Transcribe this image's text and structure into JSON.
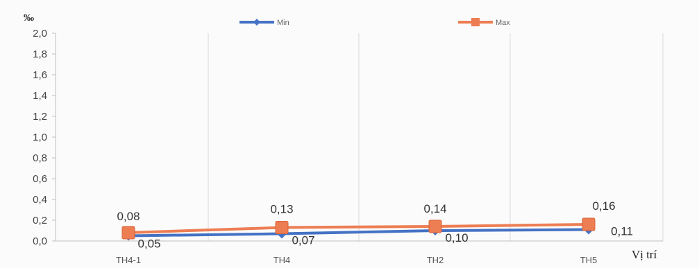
{
  "chart_data": {
    "type": "line",
    "categories": [
      "TH4-1",
      "TH4",
      "TH2",
      "TH5"
    ],
    "series": [
      {
        "name": "Min",
        "values": [
          0.05,
          0.07,
          0.1,
          0.11
        ],
        "color": "#4472c4",
        "marker": "diamond"
      },
      {
        "name": "Max",
        "values": [
          0.08,
          0.13,
          0.14,
          0.16
        ],
        "color": "#ed7d53",
        "marker": "square"
      }
    ],
    "data_labels": {
      "min": [
        "0,05",
        "0,07",
        "0,10",
        "0,11"
      ],
      "max": [
        "0,08",
        "0,13",
        "0,14",
        "0,16"
      ]
    },
    "y_unit_label": "‰",
    "xlabel": "Vị trí",
    "ylim": [
      0,
      2.0
    ],
    "y_ticks": [
      0.0,
      0.2,
      0.4,
      0.6,
      0.8,
      1.0,
      1.2,
      1.4,
      1.6,
      1.8,
      2.0
    ],
    "y_tick_labels": [
      "0,0",
      "0,2",
      "0,4",
      "0,6",
      "0,8",
      "1,0",
      "1,2",
      "1,4",
      "1,6",
      "1,8",
      "2,0"
    ],
    "grid": "vertical-at-categories",
    "legend_position": "top"
  }
}
